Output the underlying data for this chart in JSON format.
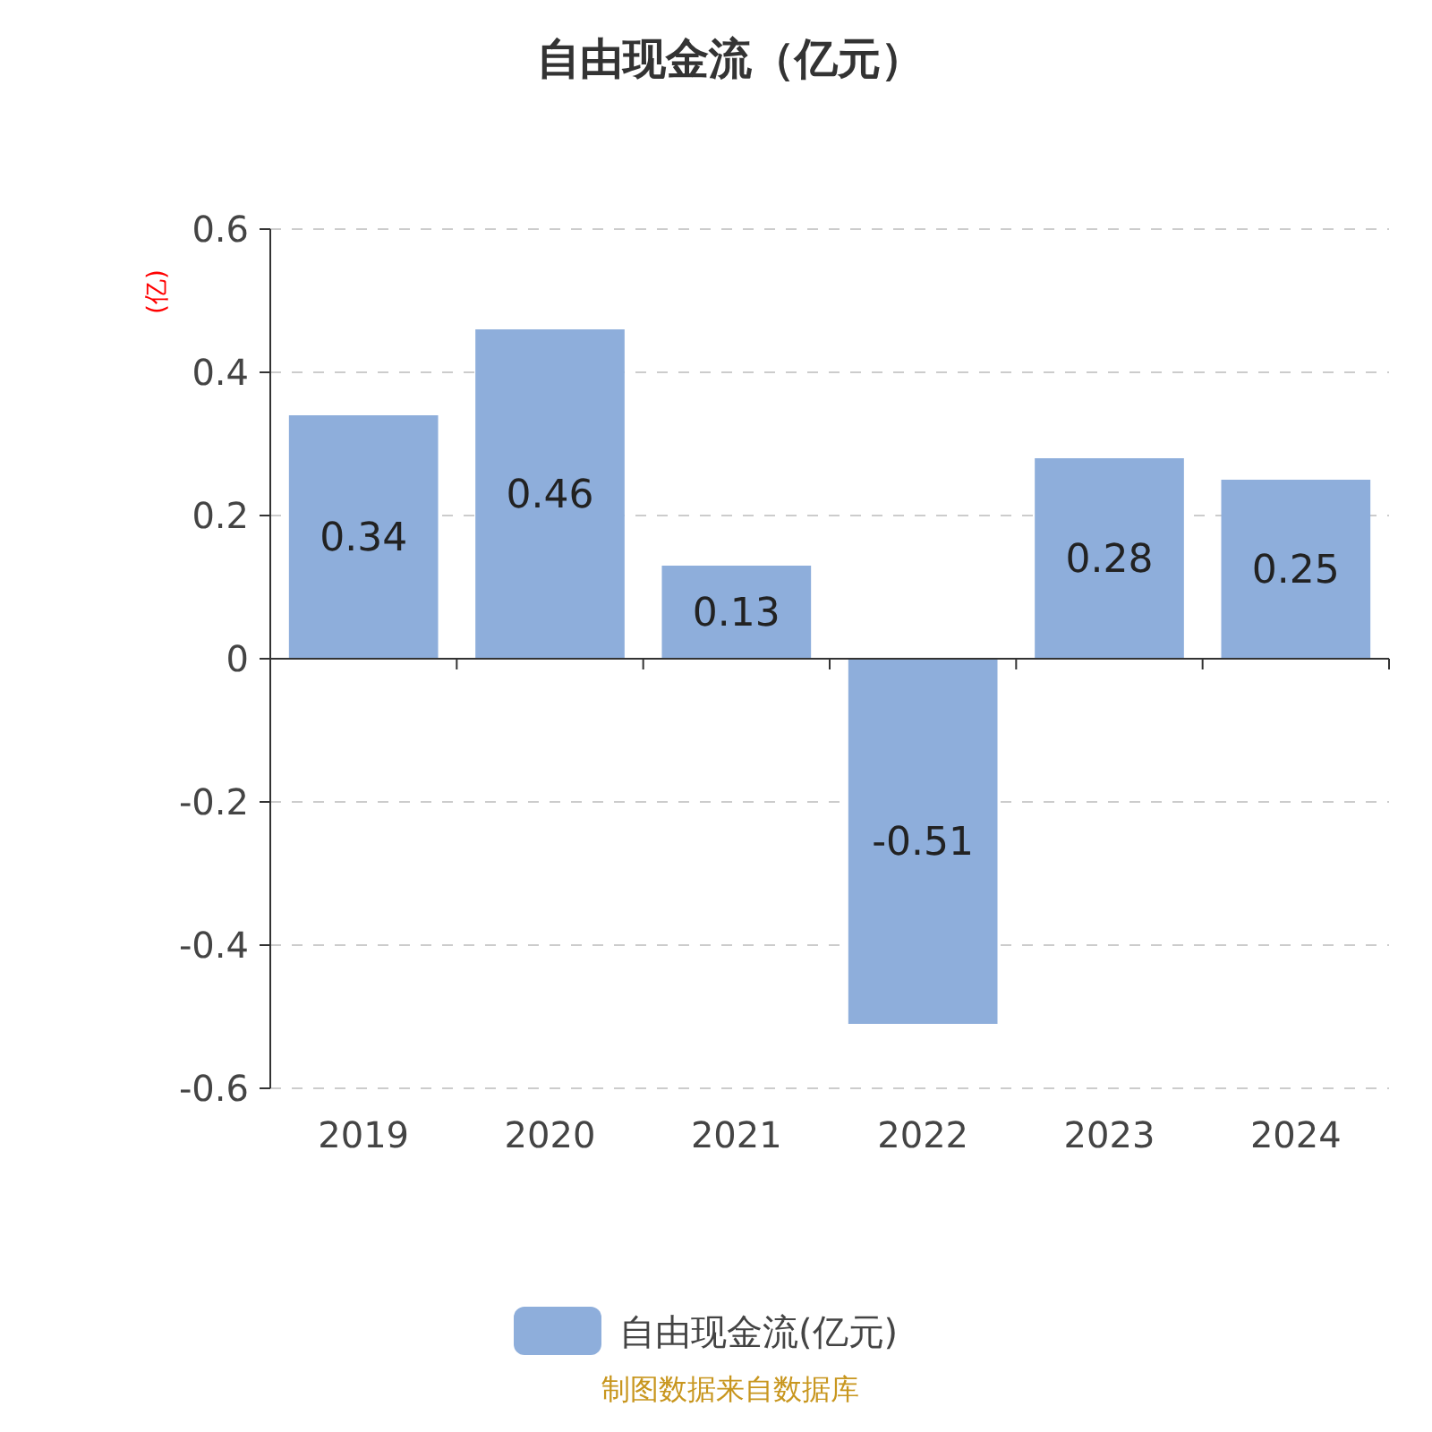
{
  "chart_data": {
    "type": "bar",
    "title": "自由现金流（亿元）",
    "ylabel": "(亿)",
    "categories": [
      "2019",
      "2020",
      "2021",
      "2022",
      "2023",
      "2024"
    ],
    "series": [
      {
        "name": "自由现金流(亿元)",
        "color": "#8eaedb",
        "values": [
          0.34,
          0.46,
          0.13,
          -0.51,
          0.28,
          0.25
        ]
      }
    ],
    "ylim": [
      -0.6,
      0.6
    ],
    "yticks": [
      -0.6,
      -0.4,
      -0.2,
      0,
      0.2,
      0.4,
      0.6
    ],
    "grid": "y",
    "legend": "bottom",
    "data_labels": true,
    "annotations": [
      "制图数据来自数据库"
    ]
  }
}
